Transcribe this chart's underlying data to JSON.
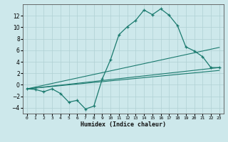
{
  "xlabel": "Humidex (Indice chaleur)",
  "ylabel": "",
  "bg_color": "#cde8eb",
  "line_color": "#1a7a6e",
  "grid_color": "#b0d0d4",
  "xlim": [
    -0.5,
    23.5
  ],
  "ylim": [
    -5,
    14
  ],
  "xticks": [
    0,
    1,
    2,
    3,
    4,
    5,
    6,
    7,
    8,
    9,
    10,
    11,
    12,
    13,
    14,
    15,
    16,
    17,
    18,
    19,
    20,
    21,
    22,
    23
  ],
  "yticks": [
    -4,
    -2,
    0,
    2,
    4,
    6,
    8,
    10,
    12
  ],
  "curve_x": [
    0,
    1,
    2,
    3,
    4,
    5,
    6,
    7,
    8,
    9,
    10,
    11,
    12,
    13,
    14,
    15,
    16,
    17,
    18,
    19,
    20,
    21,
    22,
    23
  ],
  "curve_y": [
    -0.7,
    -0.8,
    -1.2,
    -0.7,
    -1.5,
    -3.0,
    -2.7,
    -4.2,
    -3.7,
    1.0,
    4.4,
    8.7,
    10.1,
    11.2,
    13.0,
    12.2,
    13.2,
    12.1,
    10.3,
    6.6,
    5.9,
    4.9,
    3.0,
    3.0
  ],
  "line1_x": [
    0,
    23
  ],
  "line1_y": [
    -0.7,
    3.0
  ],
  "line2_x": [
    0,
    23
  ],
  "line2_y": [
    -0.7,
    6.5
  ],
  "line3_x": [
    0,
    23
  ],
  "line3_y": [
    -0.7,
    2.5
  ]
}
